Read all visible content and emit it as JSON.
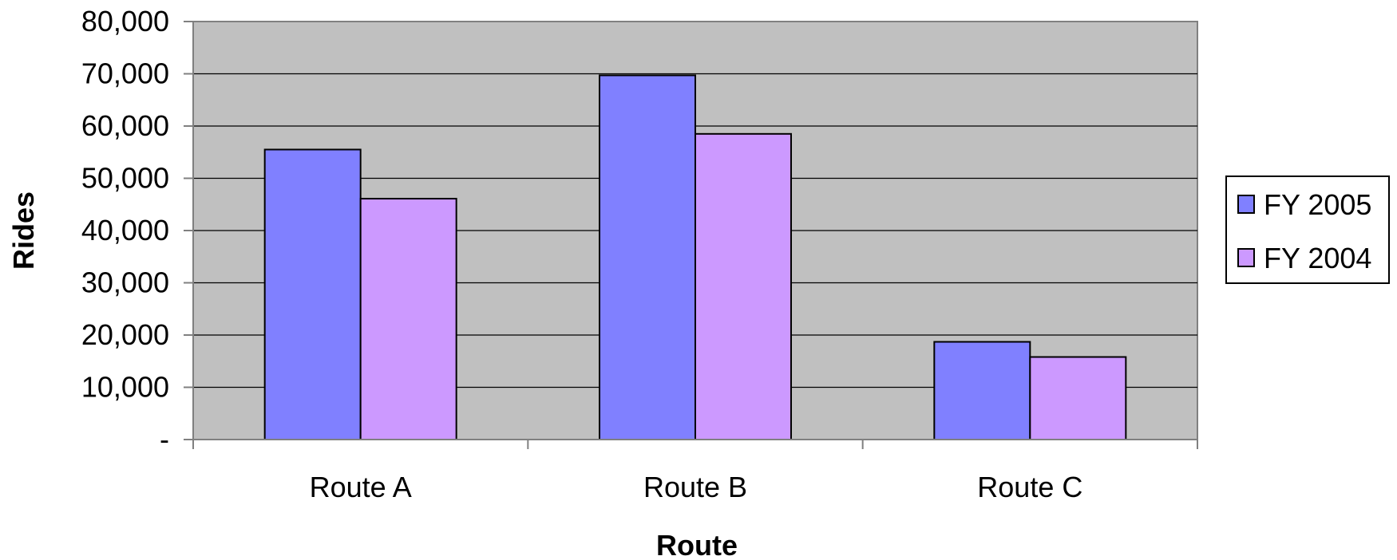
{
  "chart_data": {
    "type": "bar",
    "title": "",
    "xlabel": "Route",
    "ylabel": "Rides",
    "categories": [
      "Route A",
      "Route B",
      "Route C"
    ],
    "series": [
      {
        "name": "FY 2005",
        "color": "#8080FF",
        "values": [
          55500,
          69700,
          18700
        ]
      },
      {
        "name": "FY 2004",
        "color": "#CC99FF",
        "values": [
          46100,
          58500,
          15800
        ]
      }
    ],
    "ylim": [
      0,
      80000
    ],
    "yticks": [
      0,
      10000,
      20000,
      30000,
      40000,
      50000,
      60000,
      70000,
      80000
    ],
    "ytick_labels": [
      "-",
      "10,000",
      "20,000",
      "30,000",
      "40,000",
      "50,000",
      "60,000",
      "70,000",
      "80,000"
    ],
    "plot_background": "#C0C0C0",
    "grid": true,
    "legend": "right"
  }
}
